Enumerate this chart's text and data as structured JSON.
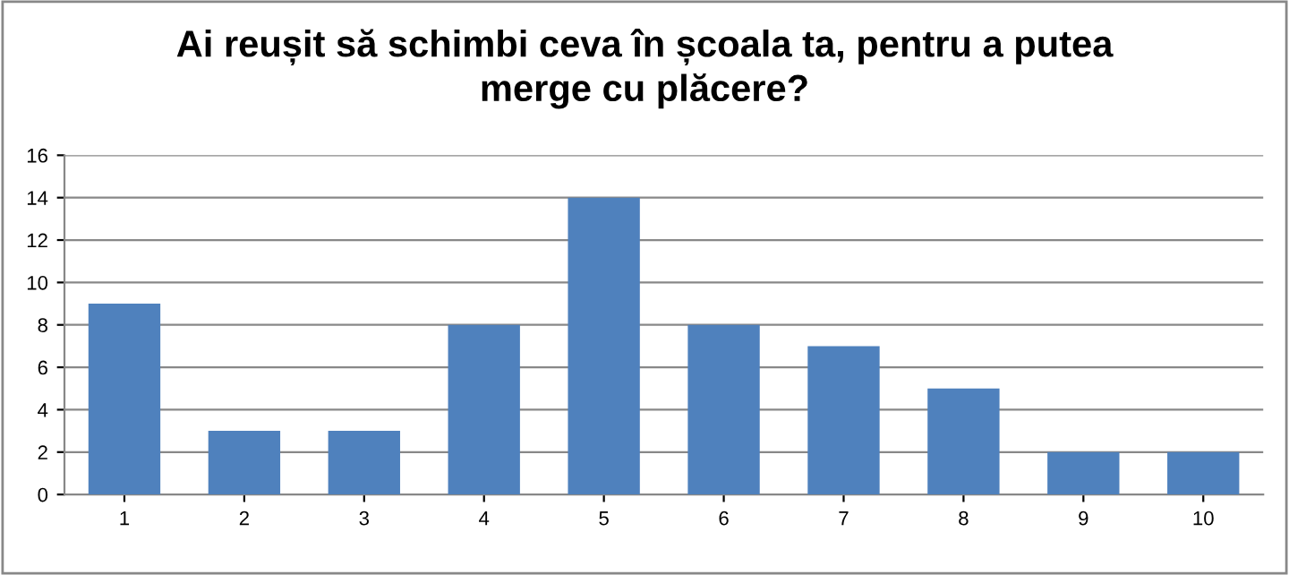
{
  "chart_data": {
    "type": "bar",
    "title": "Ai reușit să schimbi ceva în școala ta, pentru a putea\nmerge cu plăcere?",
    "categories": [
      "1",
      "2",
      "3",
      "4",
      "5",
      "6",
      "7",
      "8",
      "9",
      "10"
    ],
    "values": [
      9,
      3,
      3,
      8,
      14,
      8,
      7,
      5,
      2,
      2
    ],
    "color": "#4f81bd",
    "ylim": [
      0,
      16
    ],
    "yticks": [
      0,
      2,
      4,
      6,
      8,
      10,
      12,
      14,
      16
    ],
    "grid": "y",
    "legend": false
  }
}
